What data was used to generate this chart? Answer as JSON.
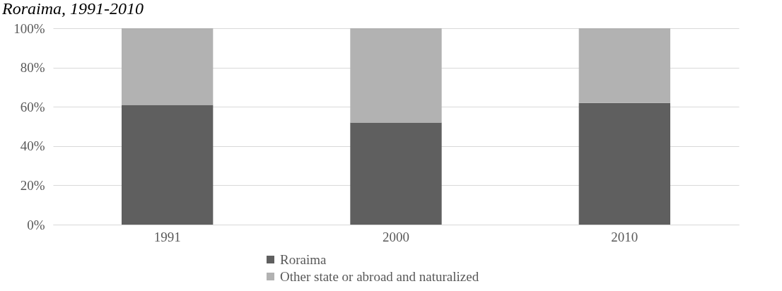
{
  "chart_data": {
    "type": "bar",
    "title": "Roraima, 1991-2010",
    "stacked": true,
    "categories": [
      "1991",
      "2000",
      "2010"
    ],
    "series": [
      {
        "name": "Roraima",
        "color": "#5f5f5f",
        "values": [
          61,
          52,
          62
        ]
      },
      {
        "name": "Other state or abroad and naturalized",
        "color": "#b2b2b2",
        "values": [
          39,
          48,
          38
        ]
      }
    ],
    "ylim": [
      0,
      100
    ],
    "yticks": [
      {
        "value": 0,
        "label": "0%"
      },
      {
        "value": 20,
        "label": "20%"
      },
      {
        "value": 40,
        "label": "40%"
      },
      {
        "value": 60,
        "label": "60%"
      },
      {
        "value": 80,
        "label": "80%"
      },
      {
        "value": 100,
        "label": "100%"
      }
    ],
    "grid": "y",
    "legend": "bottom"
  }
}
